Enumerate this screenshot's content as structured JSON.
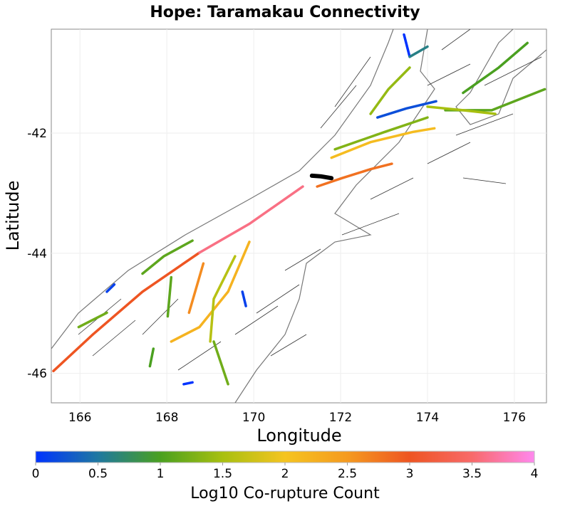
{
  "chart_data": {
    "type": "map",
    "title": "Hope: Taramakau Connectivity",
    "xlabel": "Longitude",
    "ylabel": "Latitude",
    "xlim": [
      165.34,
      176.74
    ],
    "ylim": [
      -46.49,
      -40.27
    ],
    "xticks": [
      166,
      168,
      170,
      172,
      174,
      176
    ],
    "yticks": [
      -42,
      -44,
      -46
    ],
    "xtick_labels": [
      "166",
      "168",
      "170",
      "172",
      "174",
      "176"
    ],
    "ytick_labels": [
      "-42",
      "-44",
      "-46"
    ],
    "grid": true,
    "colorbar": {
      "label": "Log10 Co-rupture Count",
      "range": [
        0,
        4
      ],
      "ticks": [
        "0",
        "0.5",
        "1",
        "1.5",
        "2",
        "2.5",
        "3",
        "3.5",
        "4"
      ],
      "stops": [
        {
          "v": 0,
          "c": "#0033ff"
        },
        {
          "v": 0.5,
          "c": "#1f78a0"
        },
        {
          "v": 1,
          "c": "#4aa020"
        },
        {
          "v": 1.5,
          "c": "#a8c010"
        },
        {
          "v": 2,
          "c": "#f5c420"
        },
        {
          "v": 2.5,
          "c": "#f59a20"
        },
        {
          "v": 3,
          "c": "#ee5522"
        },
        {
          "v": 3.5,
          "c": "#f86a6a"
        },
        {
          "v": 4,
          "c": "#ff88ee"
        }
      ]
    },
    "source_fault": {
      "name": "Hope: Taramakau",
      "color": "#000000",
      "points": [
        [
          171.34,
          -42.71
        ],
        [
          171.55,
          -42.72
        ],
        [
          171.79,
          -42.75
        ]
      ]
    },
    "faults": [
      {
        "value": 3.0,
        "points": [
          [
            165.39,
            -45.96
          ],
          [
            166.3,
            -45.35
          ],
          [
            167.44,
            -44.64
          ],
          [
            168.75,
            -43.99
          ]
        ]
      },
      {
        "value": 3.6,
        "points": [
          [
            168.75,
            -43.99
          ],
          [
            169.9,
            -43.51
          ],
          [
            171.13,
            -42.89
          ]
        ]
      },
      {
        "value": 2.8,
        "points": [
          [
            171.46,
            -42.89
          ],
          [
            172.03,
            -42.75
          ],
          [
            172.69,
            -42.6
          ],
          [
            173.18,
            -42.51
          ]
        ]
      },
      {
        "value": 2.1,
        "points": [
          [
            171.79,
            -42.41
          ],
          [
            172.69,
            -42.15
          ],
          [
            173.67,
            -41.98
          ],
          [
            174.16,
            -41.92
          ]
        ]
      },
      {
        "value": 1.3,
        "points": [
          [
            171.87,
            -42.27
          ],
          [
            173.02,
            -41.98
          ],
          [
            174.0,
            -41.74
          ]
        ]
      },
      {
        "value": 0.2,
        "points": [
          [
            172.85,
            -41.74
          ],
          [
            173.51,
            -41.59
          ],
          [
            174.2,
            -41.47
          ]
        ]
      },
      {
        "value": 1.1,
        "points": [
          [
            174.41,
            -41.62
          ],
          [
            175.48,
            -41.62
          ],
          [
            176.7,
            -41.27
          ]
        ]
      },
      {
        "value": 1.5,
        "points": [
          [
            174.0,
            -41.56
          ],
          [
            174.82,
            -41.62
          ],
          [
            175.56,
            -41.68
          ]
        ]
      },
      {
        "value": 0.0,
        "points": [
          [
            173.46,
            -40.36
          ],
          [
            173.59,
            -40.73
          ]
        ]
      },
      {
        "value": 0.6,
        "points": [
          [
            173.59,
            -40.73
          ],
          [
            174.0,
            -40.56
          ]
        ]
      },
      {
        "value": 1.4,
        "points": [
          [
            172.69,
            -41.68
          ],
          [
            173.1,
            -41.27
          ],
          [
            173.59,
            -40.91
          ]
        ]
      },
      {
        "value": 1.0,
        "points": [
          [
            174.82,
            -41.33
          ],
          [
            175.64,
            -40.91
          ],
          [
            176.3,
            -40.5
          ]
        ]
      },
      {
        "value": 2.2,
        "points": [
          [
            169.9,
            -43.81
          ],
          [
            169.41,
            -44.64
          ],
          [
            168.75,
            -45.23
          ],
          [
            168.1,
            -45.47
          ]
        ]
      },
      {
        "value": 2.6,
        "points": [
          [
            168.84,
            -44.17
          ],
          [
            168.51,
            -44.99
          ]
        ]
      },
      {
        "value": 1.1,
        "points": [
          [
            168.59,
            -43.79
          ],
          [
            167.93,
            -44.05
          ],
          [
            167.44,
            -44.34
          ]
        ]
      },
      {
        "value": 1.6,
        "points": [
          [
            169.57,
            -44.05
          ],
          [
            169.08,
            -44.76
          ],
          [
            169.0,
            -45.47
          ]
        ]
      },
      {
        "value": 1.2,
        "points": [
          [
            169.08,
            -45.47
          ],
          [
            169.41,
            -46.18
          ]
        ]
      },
      {
        "value": 0.0,
        "points": [
          [
            168.39,
            -46.18
          ],
          [
            168.59,
            -46.15
          ]
        ]
      },
      {
        "value": 0.1,
        "points": [
          [
            169.74,
            -44.64
          ],
          [
            169.82,
            -44.88
          ]
        ]
      },
      {
        "value": 1.2,
        "points": [
          [
            165.97,
            -45.23
          ],
          [
            166.62,
            -44.99
          ]
        ]
      },
      {
        "value": 0.1,
        "points": [
          [
            166.62,
            -44.64
          ],
          [
            166.79,
            -44.52
          ]
        ]
      },
      {
        "value": 1.1,
        "points": [
          [
            168.1,
            -44.4
          ],
          [
            168.02,
            -45.05
          ]
        ]
      },
      {
        "value": 1.0,
        "points": [
          [
            167.69,
            -45.59
          ],
          [
            167.61,
            -45.88
          ]
        ]
      }
    ]
  }
}
